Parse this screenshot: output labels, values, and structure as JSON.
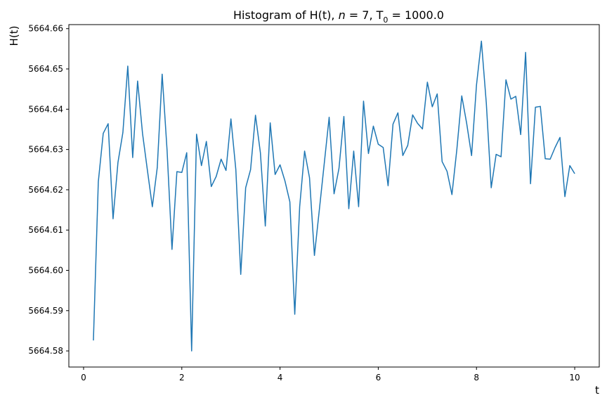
{
  "chart_data": {
    "type": "line",
    "title_parts": {
      "prefix": "Histogram of H(t), ",
      "n_symbol": "n",
      "n_eq": " = 7, T",
      "sub": "0",
      "tail": " = 1000.0"
    },
    "xlabel": "t",
    "ylabel": "H(t)",
    "xlim": [
      -0.3,
      10.5
    ],
    "ylim": [
      5664.576,
      5664.661
    ],
    "x_ticks": [
      0,
      2,
      4,
      6,
      8,
      10
    ],
    "x_tick_labels": [
      "0",
      "2",
      "4",
      "6",
      "8",
      "10"
    ],
    "y_ticks": [
      5664.58,
      5664.59,
      5664.6,
      5664.61,
      5664.62,
      5664.63,
      5664.64,
      5664.65,
      5664.66
    ],
    "y_tick_labels": [
      "5664.58",
      "5664.59",
      "5664.60",
      "5664.61",
      "5664.62",
      "5664.63",
      "5664.64",
      "5664.65",
      "5664.66"
    ],
    "grid": false,
    "line_color": "#1f77b4",
    "series": [
      {
        "x": [
          0.2,
          0.3,
          0.4,
          0.5,
          0.6,
          0.7,
          0.8,
          0.9,
          1.0,
          1.1,
          1.2,
          1.3,
          1.4,
          1.5,
          1.6,
          1.7,
          1.8,
          1.9,
          2.0,
          2.1,
          2.2,
          2.3,
          2.4,
          2.5,
          2.6,
          2.7,
          2.8,
          2.9,
          3.0,
          3.1,
          3.2,
          3.3,
          3.4,
          3.5,
          3.6,
          3.7,
          3.8,
          3.9,
          4.0,
          4.1,
          4.2,
          4.3,
          4.4,
          4.5,
          4.6,
          4.7,
          4.8,
          4.9,
          5.0,
          5.1,
          5.2,
          5.3,
          5.4,
          5.5,
          5.6,
          5.7,
          5.8,
          5.9,
          6.0,
          6.1,
          6.2,
          6.3,
          6.4,
          6.5,
          6.6,
          6.7,
          6.8,
          6.9,
          7.0,
          7.1,
          7.2,
          7.3,
          7.4,
          7.5,
          7.6,
          7.7,
          7.8,
          7.9,
          8.0,
          8.1,
          8.2,
          8.3,
          8.4,
          8.5,
          8.6,
          8.7,
          8.8,
          8.9,
          9.0,
          9.1,
          9.2,
          9.3,
          9.4,
          9.5,
          9.6,
          9.7,
          9.8,
          9.9,
          10.0
        ],
        "y": [
          5664.5826,
          5664.622,
          5664.634,
          5664.6364,
          5664.6128,
          5664.6268,
          5664.6342,
          5664.6507,
          5664.628,
          5664.647,
          5664.634,
          5664.6248,
          5664.6158,
          5664.6255,
          5664.6487,
          5664.6298,
          5664.6052,
          5664.6245,
          5664.6243,
          5664.6292,
          5664.58,
          5664.6338,
          5664.626,
          5664.632,
          5664.6208,
          5664.6233,
          5664.6276,
          5664.6248,
          5664.6376,
          5664.625,
          5664.599,
          5664.6205,
          5664.625,
          5664.6385,
          5664.6292,
          5664.611,
          5664.6366,
          5664.6238,
          5664.6262,
          5664.6222,
          5664.617,
          5664.5891,
          5664.6158,
          5664.6296,
          5664.623,
          5664.6037,
          5664.615,
          5664.6265,
          5664.638,
          5664.619,
          5664.6253,
          5664.6382,
          5664.6153,
          5664.6296,
          5664.6158,
          5664.642,
          5664.629,
          5664.6358,
          5664.6313,
          5664.6305,
          5664.621,
          5664.6363,
          5664.6391,
          5664.6285,
          5664.631,
          5664.6386,
          5664.6365,
          5664.6351,
          5664.6467,
          5664.6406,
          5664.6438,
          5664.627,
          5664.6246,
          5664.6188,
          5664.63,
          5664.6433,
          5664.6365,
          5664.6285,
          5664.646,
          5664.6569,
          5664.6415,
          5664.6205,
          5664.6288,
          5664.6282,
          5664.6473,
          5664.6425,
          5664.6432,
          5664.6337,
          5664.6541,
          5664.6215,
          5664.6405,
          5664.6407,
          5664.6277,
          5664.6276,
          5664.6305,
          5664.633,
          5664.6183,
          5664.626,
          5664.624
        ]
      }
    ]
  }
}
